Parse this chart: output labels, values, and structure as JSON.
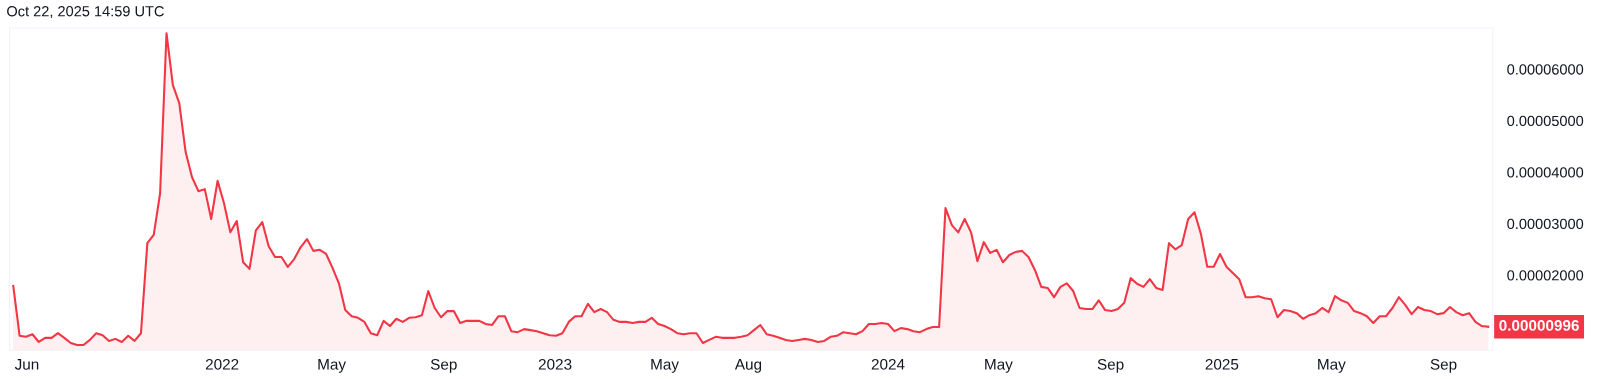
{
  "chart_data": {
    "type": "area",
    "annotations": [
      "Oct 22, 2025 14:59 UTC",
      {
        "text": "0.00000996",
        "x": "2025-10-20",
        "y": 9.96e-06
      }
    ],
    "x": [
      "2021-05-17",
      "2021-05-24",
      "2021-05-31",
      "2021-06-07",
      "2021-06-14",
      "2021-06-21",
      "2021-06-28",
      "2021-07-05",
      "2021-07-12",
      "2021-07-19",
      "2021-07-26",
      "2021-08-02",
      "2021-08-09",
      "2021-08-16",
      "2021-08-23",
      "2021-08-30",
      "2021-09-06",
      "2021-09-13",
      "2021-09-20",
      "2021-09-27",
      "2021-10-04",
      "2021-10-11",
      "2021-10-18",
      "2021-10-25",
      "2021-11-01",
      "2021-11-08",
      "2021-11-15",
      "2021-11-22",
      "2021-11-29",
      "2021-12-06",
      "2021-12-13",
      "2021-12-20",
      "2021-12-27",
      "2022-01-03",
      "2022-01-10",
      "2022-01-17",
      "2022-01-24",
      "2022-01-31",
      "2022-02-07",
      "2022-02-14",
      "2022-02-21",
      "2022-02-28",
      "2022-03-07",
      "2022-03-14",
      "2022-03-21",
      "2022-03-28",
      "2022-04-04",
      "2022-04-11",
      "2022-04-18",
      "2022-04-25",
      "2022-05-02",
      "2022-05-09",
      "2022-05-16",
      "2022-05-23",
      "2022-05-30",
      "2022-06-06",
      "2022-06-13",
      "2022-06-20",
      "2022-06-27",
      "2022-07-04",
      "2022-07-11",
      "2022-07-18",
      "2022-07-25",
      "2022-08-01",
      "2022-08-08",
      "2022-08-15",
      "2022-08-22",
      "2022-08-29",
      "2022-09-05",
      "2022-09-12",
      "2022-09-19",
      "2022-09-26",
      "2022-10-03",
      "2022-10-10",
      "2022-10-17",
      "2022-10-24",
      "2022-10-31",
      "2022-11-07",
      "2022-11-14",
      "2022-11-21",
      "2022-11-28",
      "2022-12-05",
      "2022-12-12",
      "2022-12-19",
      "2022-12-26",
      "2023-01-02",
      "2023-01-09",
      "2023-01-16",
      "2023-01-23",
      "2023-01-30",
      "2023-02-06",
      "2023-02-13",
      "2023-02-20",
      "2023-02-27",
      "2023-03-06",
      "2023-03-13",
      "2023-03-20",
      "2023-03-27",
      "2023-04-03",
      "2023-04-10",
      "2023-04-17",
      "2023-04-24",
      "2023-05-01",
      "2023-05-08",
      "2023-05-15",
      "2023-05-22",
      "2023-05-29",
      "2023-06-05",
      "2023-06-12",
      "2023-06-19",
      "2023-06-26",
      "2023-07-03",
      "2023-07-10",
      "2023-07-17",
      "2023-07-24",
      "2023-07-31",
      "2023-08-07",
      "2023-08-14",
      "2023-08-21",
      "2023-08-28",
      "2023-09-04",
      "2023-09-11",
      "2023-09-18",
      "2023-09-25",
      "2023-10-02",
      "2023-10-09",
      "2023-10-16",
      "2023-10-23",
      "2023-10-30",
      "2023-11-06",
      "2023-11-13",
      "2023-11-20",
      "2023-11-27",
      "2023-12-04",
      "2023-12-11",
      "2023-12-18",
      "2023-12-25",
      "2024-01-01",
      "2024-01-08",
      "2024-01-15",
      "2024-01-22",
      "2024-01-29",
      "2024-02-05",
      "2024-02-12",
      "2024-02-19",
      "2024-02-26",
      "2024-03-04",
      "2024-03-11",
      "2024-03-18",
      "2024-03-25",
      "2024-04-01",
      "2024-04-08",
      "2024-04-15",
      "2024-04-22",
      "2024-04-29",
      "2024-05-06",
      "2024-05-13",
      "2024-05-20",
      "2024-05-27",
      "2024-06-03",
      "2024-06-10",
      "2024-06-17",
      "2024-06-24",
      "2024-07-01",
      "2024-07-08",
      "2024-07-15",
      "2024-07-22",
      "2024-07-29",
      "2024-08-05",
      "2024-08-12",
      "2024-08-19",
      "2024-08-26",
      "2024-09-02",
      "2024-09-09",
      "2024-09-16",
      "2024-09-23",
      "2024-09-30",
      "2024-10-07",
      "2024-10-14",
      "2024-10-21",
      "2024-10-28",
      "2024-11-04",
      "2024-11-11",
      "2024-11-18",
      "2024-11-25",
      "2024-12-02",
      "2024-12-09",
      "2024-12-16",
      "2024-12-23",
      "2024-12-30",
      "2025-01-06",
      "2025-01-13",
      "2025-01-20",
      "2025-01-27",
      "2025-02-03",
      "2025-02-10",
      "2025-02-17",
      "2025-02-24",
      "2025-03-03",
      "2025-03-10",
      "2025-03-17",
      "2025-03-24",
      "2025-03-31",
      "2025-04-07",
      "2025-04-14",
      "2025-04-21",
      "2025-04-28",
      "2025-05-05",
      "2025-05-12",
      "2025-05-19",
      "2025-05-26",
      "2025-06-02",
      "2025-06-09",
      "2025-06-16",
      "2025-06-23",
      "2025-06-30",
      "2025-07-07",
      "2025-07-14",
      "2025-07-21",
      "2025-07-28",
      "2025-08-04",
      "2025-08-11",
      "2025-08-18",
      "2025-08-25",
      "2025-09-01",
      "2025-09-08",
      "2025-09-15",
      "2025-09-22",
      "2025-09-29",
      "2025-10-06",
      "2025-10-13",
      "2025-10-20"
    ],
    "series": [
      {
        "color": "#f23645",
        "values": [
          1.79e-05,
          8.2e-06,
          8e-06,
          8.5e-06,
          7e-06,
          7.8e-06,
          7.8e-06,
          8.7e-06,
          7.8e-06,
          6.8e-06,
          6.4e-06,
          6.4e-06,
          7.4e-06,
          8.7e-06,
          8.3e-06,
          7.2e-06,
          7.6e-06,
          7e-06,
          8.2e-06,
          7.2e-06,
          8.7e-06,
          2.62e-05,
          2.78e-05,
          3.59e-05,
          6.7e-05,
          5.69e-05,
          5.34e-05,
          4.39e-05,
          3.9e-05,
          3.63e-05,
          3.67e-05,
          3.09e-05,
          3.83e-05,
          3.4e-05,
          2.83e-05,
          3.05e-05,
          2.25e-05,
          2.12e-05,
          2.87e-05,
          3.03e-05,
          2.56e-05,
          2.35e-05,
          2.35e-05,
          2.16e-05,
          2.31e-05,
          2.54e-05,
          2.7e-05,
          2.47e-05,
          2.49e-05,
          2.41e-05,
          2.14e-05,
          1.84e-05,
          1.32e-05,
          1.2e-05,
          1.17e-05,
          1.09e-05,
          8.7e-06,
          8.3e-06,
          1.11e-05,
          1.01e-05,
          1.15e-05,
          1.09e-05,
          1.17e-05,
          1.18e-05,
          1.22e-05,
          1.69e-05,
          1.36e-05,
          1.18e-05,
          1.3e-05,
          1.3e-05,
          1.07e-05,
          1.11e-05,
          1.11e-05,
          1.11e-05,
          1.05e-05,
          1.03e-05,
          1.2e-05,
          1.2e-05,
          9.1e-06,
          8.9e-06,
          9.5e-06,
          9.3e-06,
          9.1e-06,
          8.7e-06,
          8.3e-06,
          8.2e-06,
          8.7e-06,
          1.09e-05,
          1.2e-05,
          1.2e-05,
          1.44e-05,
          1.28e-05,
          1.34e-05,
          1.28e-05,
          1.13e-05,
          1.09e-05,
          1.09e-05,
          1.07e-05,
          1.09e-05,
          1.09e-05,
          1.17e-05,
          1.05e-05,
          1.01e-05,
          9.5e-06,
          8.7e-06,
          8.5e-06,
          8.7e-06,
          8.7e-06,
          6.8e-06,
          7.4e-06,
          8e-06,
          7.8e-06,
          7.8e-06,
          7.8e-06,
          8e-06,
          8.3e-06,
          9.3e-06,
          1.03e-05,
          8.5e-06,
          8.2e-06,
          7.8e-06,
          7.4e-06,
          7.2e-06,
          7.4e-06,
          7.6e-06,
          7.4e-06,
          7e-06,
          7.2e-06,
          8e-06,
          8.2e-06,
          8.9e-06,
          8.7e-06,
          8.5e-06,
          9.1e-06,
          1.05e-05,
          1.05e-05,
          1.07e-05,
          1.05e-05,
          9.1e-06,
          9.7e-06,
          9.5e-06,
          9.1e-06,
          8.9e-06,
          9.5e-06,
          9.9e-06,
          9.9e-06,
          3.3e-05,
          2.97e-05,
          2.83e-05,
          3.09e-05,
          2.83e-05,
          2.27e-05,
          2.64e-05,
          2.43e-05,
          2.49e-05,
          2.25e-05,
          2.39e-05,
          2.45e-05,
          2.47e-05,
          2.35e-05,
          2.1e-05,
          1.77e-05,
          1.75e-05,
          1.57e-05,
          1.77e-05,
          1.84e-05,
          1.69e-05,
          1.36e-05,
          1.34e-05,
          1.34e-05,
          1.51e-05,
          1.32e-05,
          1.3e-05,
          1.34e-05,
          1.46e-05,
          1.94e-05,
          1.83e-05,
          1.77e-05,
          1.92e-05,
          1.75e-05,
          1.71e-05,
          2.62e-05,
          2.5e-05,
          2.58e-05,
          3.09e-05,
          3.22e-05,
          2.8e-05,
          2.16e-05,
          2.16e-05,
          2.41e-05,
          2.16e-05,
          2.04e-05,
          1.92e-05,
          1.57e-05,
          1.57e-05,
          1.59e-05,
          1.55e-05,
          1.53e-05,
          1.18e-05,
          1.32e-05,
          1.3e-05,
          1.26e-05,
          1.15e-05,
          1.22e-05,
          1.26e-05,
          1.36e-05,
          1.28e-05,
          1.59e-05,
          1.51e-05,
          1.46e-05,
          1.3e-05,
          1.26e-05,
          1.2e-05,
          1.07e-05,
          1.2e-05,
          1.2e-05,
          1.36e-05,
          1.57e-05,
          1.42e-05,
          1.24e-05,
          1.38e-05,
          1.32e-05,
          1.3e-05,
          1.24e-05,
          1.26e-05,
          1.38e-05,
          1.28e-05,
          1.22e-05,
          1.26e-05,
          1.09e-05,
          1.01e-05,
          9.96e-06
        ]
      }
    ],
    "xlim": [
      "2021-05-13",
      "2025-10-25"
    ],
    "xticks": [
      {
        "value": "2021-06-01",
        "label": "Jun"
      },
      {
        "value": "2022-01-01",
        "label": "2022"
      },
      {
        "value": "2022-05-01",
        "label": "May"
      },
      {
        "value": "2022-09-01",
        "label": "Sep"
      },
      {
        "value": "2023-01-01",
        "label": "2023"
      },
      {
        "value": "2023-05-01",
        "label": "May"
      },
      {
        "value": "2023-08-01",
        "label": "Aug"
      },
      {
        "value": "2024-01-01",
        "label": "2024"
      },
      {
        "value": "2024-05-01",
        "label": "May"
      },
      {
        "value": "2024-09-01",
        "label": "Sep"
      },
      {
        "value": "2025-01-01",
        "label": "2025"
      },
      {
        "value": "2025-05-01",
        "label": "May"
      },
      {
        "value": "2025-09-01",
        "label": "Sep"
      }
    ],
    "ylim": [
      5.4e-06,
      6.8e-05
    ],
    "yticks": [
      {
        "value": 2e-05,
        "label": "0.00002000"
      },
      {
        "value": 3e-05,
        "label": "0.00003000"
      },
      {
        "value": 4e-05,
        "label": "0.00004000"
      },
      {
        "value": 5e-05,
        "label": "0.00005000"
      },
      {
        "value": 6e-05,
        "label": "0.00006000"
      }
    ]
  }
}
